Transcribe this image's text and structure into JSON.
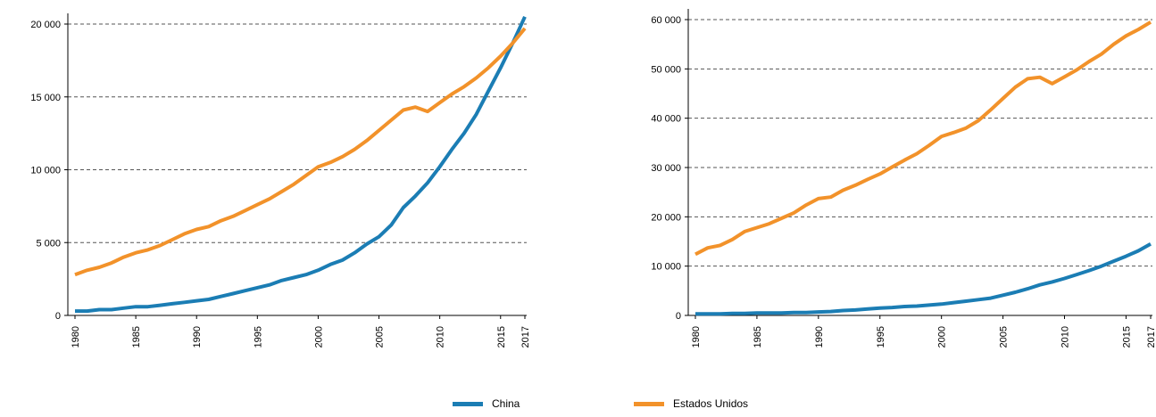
{
  "colors": {
    "china": "#1b7db4",
    "usa": "#f2922a",
    "grid": "#555555"
  },
  "legend": [
    {
      "name": "China",
      "color": "#1b7db4"
    },
    {
      "name": "Estados Unidos",
      "color": "#f2922a"
    }
  ],
  "chart_data": [
    {
      "type": "line",
      "xlim": [
        1980,
        2017
      ],
      "ylim": [
        0,
        20000
      ],
      "yticks": [
        0,
        5000,
        10000,
        15000,
        20000
      ],
      "ytick_labels": [
        "0",
        "5 000",
        "10 000",
        "15 000",
        "20 000"
      ],
      "xticks": [
        1980,
        1985,
        1990,
        1995,
        2000,
        2005,
        2010,
        2015,
        2017
      ],
      "xtick_labels": [
        "1980",
        "1985",
        "1990",
        "1995",
        "2000",
        "2005",
        "2010",
        "2015",
        "2017"
      ],
      "grid": "horizontal dashed",
      "x": [
        1980,
        1981,
        1982,
        1983,
        1984,
        1985,
        1986,
        1987,
        1988,
        1989,
        1990,
        1991,
        1992,
        1993,
        1994,
        1995,
        1996,
        1997,
        1998,
        1999,
        2000,
        2001,
        2002,
        2003,
        2004,
        2005,
        2006,
        2007,
        2008,
        2009,
        2010,
        2011,
        2012,
        2013,
        2014,
        2015,
        2016,
        2017
      ],
      "series": [
        {
          "name": "China",
          "color": "#1b7db4",
          "values": [
            300,
            300,
            400,
            400,
            500,
            600,
            600,
            700,
            800,
            900,
            1000,
            1100,
            1300,
            1500,
            1700,
            1900,
            2100,
            2400,
            2600,
            2800,
            3100,
            3500,
            3800,
            4300,
            4900,
            5400,
            6200,
            7400,
            8200,
            9100,
            10200,
            11400,
            12500,
            13800,
            15400,
            17000,
            18700,
            20500
          ]
        },
        {
          "name": "Estados Unidos",
          "color": "#f2922a",
          "values": [
            2800,
            3100,
            3300,
            3600,
            4000,
            4300,
            4500,
            4800,
            5200,
            5600,
            5900,
            6100,
            6500,
            6800,
            7200,
            7600,
            8000,
            8500,
            9000,
            9600,
            10200,
            10500,
            10900,
            11400,
            12000,
            12700,
            13400,
            14100,
            14300,
            14000,
            14600,
            15200,
            15700,
            16300,
            17000,
            17800,
            18700,
            19700
          ]
        }
      ]
    },
    {
      "type": "line",
      "xlim": [
        1980,
        2017
      ],
      "ylim": [
        0,
        60000
      ],
      "yticks": [
        0,
        10000,
        20000,
        30000,
        40000,
        50000,
        60000
      ],
      "ytick_labels": [
        "0",
        "10 000",
        "20 000",
        "30 000",
        "40 000",
        "50 000",
        "60 000"
      ],
      "xticks": [
        1980,
        1985,
        1990,
        1995,
        2000,
        2005,
        2010,
        2015,
        2017
      ],
      "xtick_labels": [
        "1980",
        "1985",
        "1990",
        "1995",
        "2000",
        "2005",
        "2010",
        "2015",
        "2017"
      ],
      "grid": "horizontal dashed",
      "x": [
        1980,
        1981,
        1982,
        1983,
        1984,
        1985,
        1986,
        1987,
        1988,
        1989,
        1990,
        1991,
        1992,
        1993,
        1994,
        1995,
        1996,
        1997,
        1998,
        1999,
        2000,
        2001,
        2002,
        2003,
        2004,
        2005,
        2006,
        2007,
        2008,
        2009,
        2010,
        2011,
        2012,
        2013,
        2014,
        2015,
        2016,
        2017
      ],
      "series": [
        {
          "name": "China",
          "color": "#1b7db4",
          "values": [
            300,
            300,
            300,
            400,
            400,
            500,
            500,
            500,
            600,
            600,
            700,
            800,
            1000,
            1100,
            1300,
            1500,
            1600,
            1800,
            1900,
            2100,
            2300,
            2600,
            2900,
            3200,
            3500,
            4100,
            4700,
            5400,
            6200,
            6800,
            7500,
            8300,
            9100,
            10000,
            11000,
            12000,
            13100,
            14500
          ]
        },
        {
          "name": "Estados Unidos",
          "color": "#f2922a",
          "values": [
            12400,
            13700,
            14200,
            15400,
            17000,
            17800,
            18600,
            19700,
            20800,
            22400,
            23700,
            24000,
            25400,
            26400,
            27600,
            28700,
            30100,
            31500,
            32800,
            34500,
            36300,
            37100,
            38000,
            39500,
            41700,
            44000,
            46300,
            48000,
            48300,
            47000,
            48400,
            49800,
            51500,
            53000,
            55000,
            56700,
            58000,
            59500
          ]
        }
      ]
    }
  ]
}
